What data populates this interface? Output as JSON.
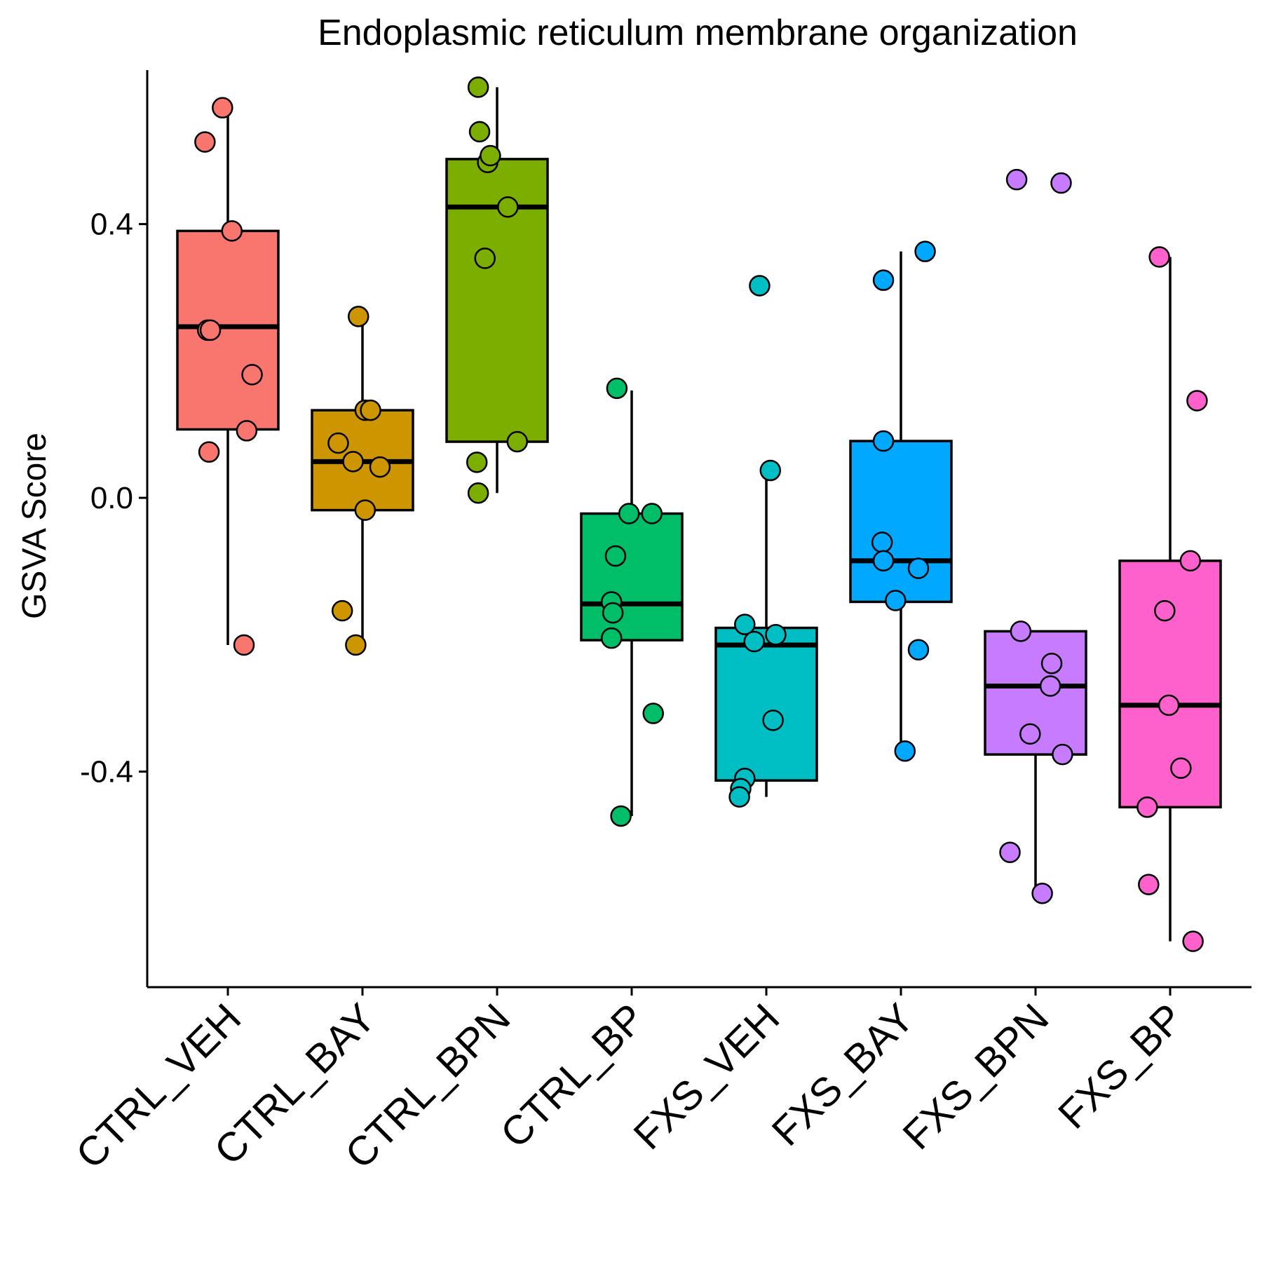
{
  "chart_data": {
    "type": "box",
    "title": "Endoplasmic reticulum membrane organization",
    "xlabel": "",
    "ylabel": "GSVA Score",
    "ylim": [
      -0.715,
      0.625
    ],
    "yticks": [
      0.4,
      0.0,
      -0.4
    ],
    "ytick_labels": [
      "0.4",
      "0.0",
      "-0.4"
    ],
    "grid": false,
    "legend": "none",
    "categories": [
      "CTRL_VEH",
      "CTRL_BAY",
      "CTRL_BPN",
      "CTRL_BP",
      "FXS_VEH",
      "FXS_BAY",
      "FXS_BPN",
      "FXS_BP"
    ],
    "colors": [
      "#F8766D",
      "#CD9600",
      "#7CAE00",
      "#00BE67",
      "#00BFC4",
      "#00A9FF",
      "#C77CFF",
      "#FF61CC"
    ],
    "boxes": [
      {
        "name": "CTRL_VEH",
        "whisker_low": -0.215,
        "q1": 0.1,
        "median": 0.25,
        "q3": 0.39,
        "whisker_high": 0.57
      },
      {
        "name": "CTRL_BAY",
        "whisker_low": -0.215,
        "q1": -0.018,
        "median": 0.053,
        "q3": 0.128,
        "whisker_high": 0.265
      },
      {
        "name": "CTRL_BPN",
        "whisker_low": 0.007,
        "q1": 0.082,
        "median": 0.425,
        "q3": 0.495,
        "whisker_high": 0.6
      },
      {
        "name": "CTRL_BP",
        "whisker_low": -0.465,
        "q1": -0.208,
        "median": -0.155,
        "q3": -0.023,
        "whisker_high": 0.157
      },
      {
        "name": "FXS_VEH",
        "whisker_low": -0.437,
        "q1": -0.413,
        "median": -0.215,
        "q3": -0.19,
        "whisker_high": 0.04
      },
      {
        "name": "FXS_BAY",
        "whisker_low": -0.37,
        "q1": -0.152,
        "median": -0.092,
        "q3": 0.083,
        "whisker_high": 0.36
      },
      {
        "name": "FXS_BPN",
        "whisker_low": -0.578,
        "q1": -0.375,
        "median": -0.275,
        "q3": -0.195,
        "whisker_high": -0.195
      },
      {
        "name": "FXS_BP",
        "whisker_low": -0.648,
        "q1": -0.452,
        "median": -0.303,
        "q3": -0.092,
        "whisker_high": 0.352
      }
    ],
    "points": [
      [
        [
          -0.04,
          0.57
        ],
        [
          -0.17,
          0.52
        ],
        [
          0.03,
          0.39
        ],
        [
          -0.15,
          0.245
        ],
        [
          -0.13,
          0.245
        ],
        [
          0.18,
          0.18
        ],
        [
          0.14,
          0.098
        ],
        [
          -0.14,
          0.067
        ],
        [
          0.12,
          -0.215
        ]
      ],
      [
        [
          -0.03,
          0.265
        ],
        [
          0.02,
          0.128
        ],
        [
          0.06,
          0.128
        ],
        [
          -0.18,
          0.08
        ],
        [
          -0.07,
          0.053
        ],
        [
          0.13,
          0.045
        ],
        [
          0.02,
          -0.018
        ],
        [
          -0.15,
          -0.165
        ],
        [
          -0.05,
          -0.215
        ]
      ],
      [
        [
          -0.14,
          0.6
        ],
        [
          -0.13,
          0.535
        ],
        [
          -0.07,
          0.49
        ],
        [
          -0.05,
          0.5
        ],
        [
          0.08,
          0.425
        ],
        [
          -0.09,
          0.35
        ],
        [
          0.15,
          0.082
        ],
        [
          -0.15,
          0.052
        ],
        [
          -0.14,
          0.007
        ]
      ],
      [
        [
          -0.11,
          0.16
        ],
        [
          -0.02,
          -0.023
        ],
        [
          0.15,
          -0.023
        ],
        [
          -0.12,
          -0.085
        ],
        [
          -0.15,
          -0.152
        ],
        [
          -0.14,
          -0.168
        ],
        [
          -0.15,
          -0.205
        ],
        [
          0.16,
          -0.315
        ],
        [
          -0.08,
          -0.465
        ]
      ],
      [
        [
          -0.05,
          0.31
        ],
        [
          0.03,
          0.04
        ],
        [
          -0.16,
          -0.185
        ],
        [
          0.07,
          -0.2
        ],
        [
          -0.09,
          -0.21
        ],
        [
          0.05,
          -0.325
        ],
        [
          -0.16,
          -0.41
        ],
        [
          -0.19,
          -0.425
        ],
        [
          -0.2,
          -0.437
        ]
      ],
      [
        [
          -0.13,
          0.318
        ],
        [
          0.18,
          0.36
        ],
        [
          -0.13,
          0.083
        ],
        [
          -0.14,
          -0.065
        ],
        [
          -0.13,
          -0.092
        ],
        [
          0.13,
          -0.103
        ],
        [
          -0.04,
          -0.15
        ],
        [
          0.13,
          -0.222
        ],
        [
          0.03,
          -0.37
        ]
      ],
      [
        [
          -0.14,
          0.465
        ],
        [
          0.19,
          0.46
        ],
        [
          -0.11,
          -0.195
        ],
        [
          0.12,
          -0.242
        ],
        [
          0.11,
          -0.275
        ],
        [
          -0.04,
          -0.345
        ],
        [
          0.2,
          -0.375
        ],
        [
          -0.19,
          -0.518
        ],
        [
          0.05,
          -0.578
        ]
      ],
      [
        [
          -0.08,
          0.352
        ],
        [
          0.2,
          0.142
        ],
        [
          0.15,
          -0.092
        ],
        [
          -0.04,
          -0.165
        ],
        [
          -0.01,
          -0.303
        ],
        [
          0.08,
          -0.395
        ],
        [
          -0.17,
          -0.452
        ],
        [
          -0.16,
          -0.565
        ],
        [
          0.17,
          -0.648
        ]
      ]
    ]
  }
}
